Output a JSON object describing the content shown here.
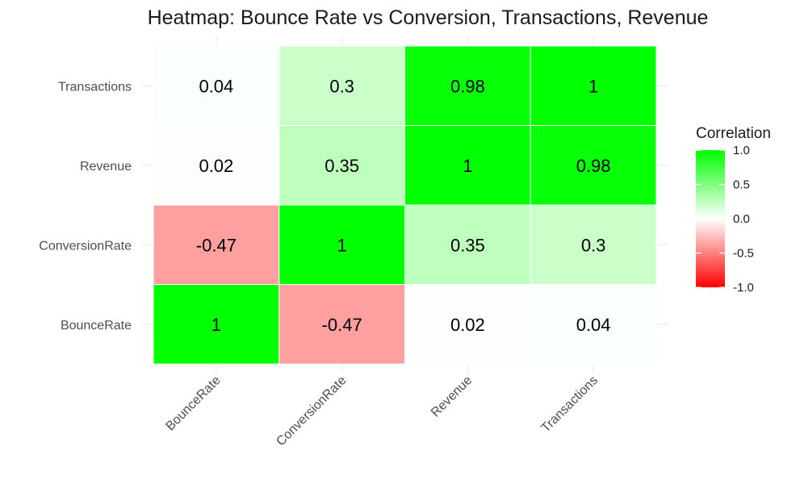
{
  "chart_data": {
    "type": "heatmap",
    "title": "Heatmap: Bounce Rate vs Conversion, Transactions, Revenue",
    "x_categories": [
      "BounceRate",
      "ConversionRate",
      "Revenue",
      "Transactions"
    ],
    "y_categories": [
      "BounceRate",
      "ConversionRate",
      "Revenue",
      "Transactions"
    ],
    "values": [
      [
        1,
        -0.47,
        0.02,
        0.04
      ],
      [
        -0.47,
        1,
        0.35,
        0.3
      ],
      [
        0.02,
        0.35,
        1,
        0.98
      ],
      [
        0.04,
        0.3,
        0.98,
        1
      ]
    ],
    "xlabel": "",
    "ylabel": "",
    "legend": {
      "title": "Correlation",
      "placement": "right",
      "ticks": [
        "1.0",
        "0.5",
        "0.0",
        "-0.5",
        "-1.0"
      ],
      "range": [
        -1,
        1
      ]
    },
    "colors": {
      "low": "#ff0000",
      "mid": "#ffffff",
      "high": "#00ff00"
    }
  }
}
